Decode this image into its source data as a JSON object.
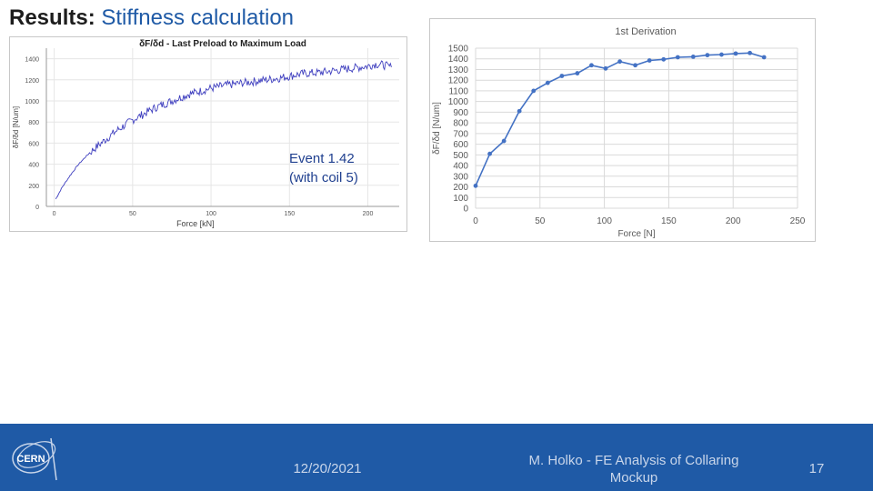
{
  "slide": {
    "title_bold": "Results:",
    "title_rest": " Stiffness calculation",
    "event_line1": "Event 1.42",
    "event_line2": "(with coil 5)"
  },
  "footer": {
    "logo_text": "CERN",
    "date": "12/20/2021",
    "author": "M. Holko - FE Analysis of Collaring Mockup",
    "page": "17"
  },
  "colors": {
    "footer_bg": "#1f5aa6",
    "left_series": "#3f3fbf",
    "right_series": "#4472c4",
    "title_accent": "#1f5aa6"
  },
  "chart_data": [
    {
      "type": "line",
      "title": "δF/δd - Last Preload to Maximum Load",
      "xlabel": "Force [kN]",
      "ylabel": "δF/δd [N/um]",
      "xlim": [
        -5,
        220
      ],
      "ylim": [
        0,
        1500
      ],
      "xticks": [
        "0",
        "50",
        "100",
        "150",
        "200"
      ],
      "yticks": [
        "0",
        "200",
        "400",
        "600",
        "800",
        "1000",
        "1200",
        "1400"
      ],
      "grid": true,
      "series": [
        {
          "x": [
            1,
            5,
            10,
            15,
            20,
            25,
            30,
            35,
            40,
            45,
            50,
            55,
            60,
            65,
            70,
            75,
            80,
            85,
            90,
            95,
            100,
            105,
            110,
            115,
            120,
            125,
            130,
            135,
            140,
            145,
            150,
            155,
            160,
            165,
            170,
            175,
            180,
            185,
            190,
            195,
            200,
            205,
            210,
            215
          ],
          "values": [
            70,
            180,
            290,
            390,
            470,
            540,
            600,
            660,
            720,
            770,
            820,
            860,
            900,
            940,
            970,
            1000,
            1030,
            1060,
            1080,
            1100,
            1120,
            1135,
            1150,
            1160,
            1170,
            1180,
            1190,
            1200,
            1210,
            1220,
            1235,
            1250,
            1260,
            1265,
            1270,
            1280,
            1290,
            1300,
            1310,
            1320,
            1330,
            1350,
            1340,
            1320
          ]
        }
      ]
    },
    {
      "type": "line",
      "title": "1st Derivation",
      "xlabel": "Force [N]",
      "ylabel": "δF/δd [N/um]",
      "xlim": [
        0,
        250
      ],
      "ylim": [
        0,
        1500
      ],
      "xticks": [
        "0",
        "50",
        "100",
        "150",
        "200",
        "250"
      ],
      "yticks": [
        "0",
        "100",
        "200",
        "300",
        "400",
        "500",
        "600",
        "700",
        "800",
        "900",
        "1000",
        "1100",
        "1200",
        "1300",
        "1400",
        "1500"
      ],
      "grid": true,
      "series": [
        {
          "x": [
            0,
            11,
            22,
            34,
            45,
            56,
            67,
            79,
            90,
            101,
            112,
            124,
            135,
            146,
            157,
            169,
            180,
            191,
            202,
            213,
            224
          ],
          "values": [
            210,
            510,
            630,
            910,
            1100,
            1175,
            1240,
            1265,
            1340,
            1310,
            1375,
            1340,
            1385,
            1395,
            1415,
            1420,
            1435,
            1440,
            1450,
            1455,
            1415
          ]
        }
      ]
    }
  ]
}
